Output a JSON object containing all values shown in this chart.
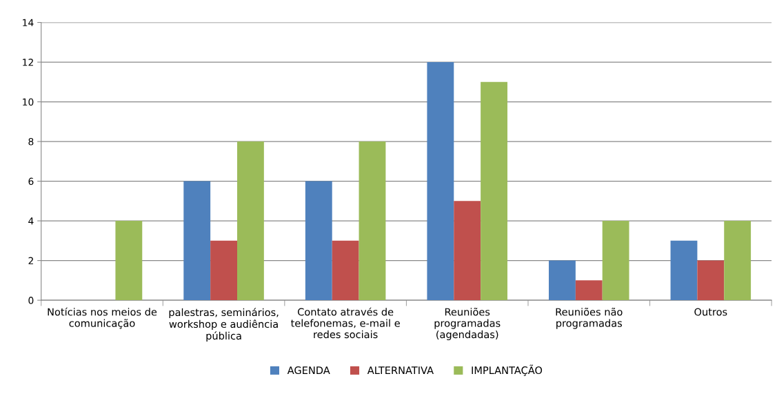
{
  "chart_data": {
    "type": "bar",
    "categories": [
      "Notícias nos meios de\ncomunicação",
      "palestras, seminários,\nworkshop e audiência\npública",
      "Contato através de\ntelefonemas, e-mail e\nredes sociais",
      "Reuniões\nprogramadas\n(agendadas)",
      "Reuniões não\nprogramadas",
      "Outros"
    ],
    "series": [
      {
        "name": "AGENDA",
        "color": "#4f81bd",
        "values": [
          0,
          6,
          6,
          12,
          2,
          3
        ]
      },
      {
        "name": "ALTERNATIVA",
        "color": "#c0504d",
        "values": [
          0,
          3,
          3,
          5,
          1,
          2
        ]
      },
      {
        "name": "IMPLANTAÇÃO",
        "color": "#9bbb59",
        "values": [
          4,
          8,
          8,
          11,
          4,
          4
        ]
      }
    ],
    "ylim": [
      0,
      14
    ],
    "yticks": [
      0,
      2,
      4,
      6,
      8,
      10,
      12,
      14
    ],
    "grid": "y",
    "legend": "bottom"
  }
}
